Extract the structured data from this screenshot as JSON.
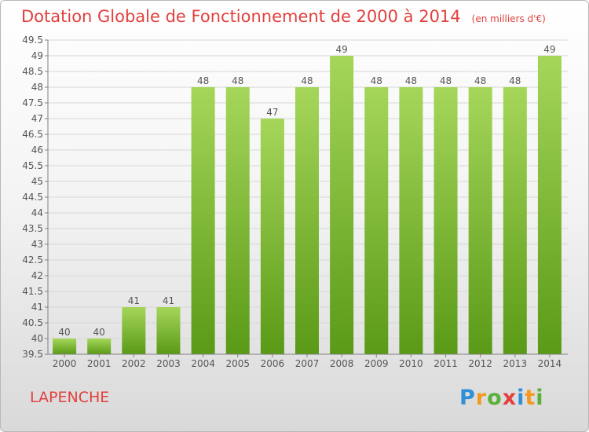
{
  "header": {
    "title": "Dotation Globale de Fonctionnement de 2000 à 2014",
    "unit": "(en milliers d'€)"
  },
  "footer": {
    "commune": "LAPENCHE",
    "logo_text": "Proxiti",
    "logo_letters": [
      {
        "ch": "P",
        "color": "#2f8fd8"
      },
      {
        "ch": "r",
        "color": "#f29a1f"
      },
      {
        "ch": "o",
        "color": "#59b03a"
      },
      {
        "ch": "x",
        "color": "#e2403d"
      },
      {
        "ch": "i",
        "color": "#2f8fd8"
      },
      {
        "ch": "t",
        "color": "#f29a1f"
      },
      {
        "ch": "i",
        "color": "#59b03a"
      }
    ]
  },
  "colors": {
    "bar_top": "#a5d65a",
    "bar_bottom": "#5a9a16",
    "grid": "#d7d7d7",
    "axis": "#808080",
    "text": "#555555",
    "accent": "#e2403d"
  },
  "chart_data": {
    "type": "bar",
    "title": "Dotation Globale de Fonctionnement de 2000 à 2014",
    "subtitle": "(en milliers d'€)",
    "xlabel": "",
    "ylabel": "",
    "categories": [
      "2000",
      "2001",
      "2002",
      "2003",
      "2004",
      "2005",
      "2006",
      "2007",
      "2008",
      "2009",
      "2010",
      "2011",
      "2012",
      "2013",
      "2014"
    ],
    "values": [
      40,
      40,
      41,
      41,
      48,
      48,
      47,
      48,
      49,
      48,
      48,
      48,
      48,
      48,
      49
    ],
    "data_labels": [
      "40",
      "40",
      "41",
      "41",
      "48",
      "48",
      "47",
      "48",
      "49",
      "48",
      "48",
      "48",
      "48",
      "48",
      "49"
    ],
    "ylim": [
      39.5,
      49.5
    ],
    "yticks": [
      "39.5",
      "40",
      "40.5",
      "41",
      "41.5",
      "42",
      "42.5",
      "43",
      "43.5",
      "44",
      "44.5",
      "45",
      "45.5",
      "46",
      "46.5",
      "47",
      "47.5",
      "48",
      "48.5",
      "49",
      "49.5"
    ],
    "grid": true,
    "legend": "none"
  }
}
